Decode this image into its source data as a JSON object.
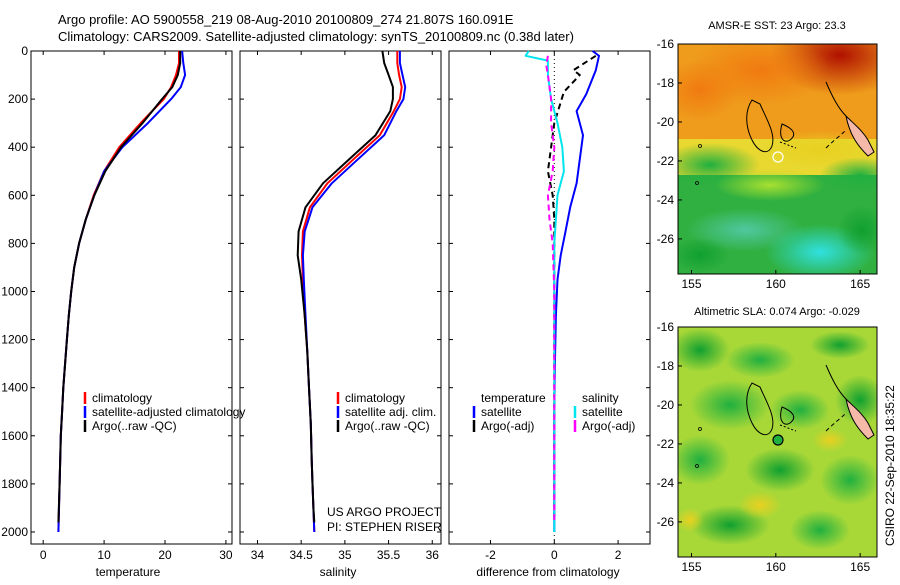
{
  "header": {
    "line1": "Argo profile: AO 5900558_219 08-Aug-2010 20100809_274 21.807S 160.091E",
    "line2": "Climatology: CARS2009. Satellite-adjusted climatology: synTS_20100809.nc (0.38d later)"
  },
  "credit": {
    "project": "US ARGO PROJECT",
    "pi": "PI: STEPHEN RISER",
    "stamp": "CSIRO 22-Sep-2010 18:35:22"
  },
  "colors": {
    "climatology": "#ff0000",
    "satellite": "#0000ff",
    "argo": "#000000",
    "satellite_salinity": "#00e5ee",
    "argo_salinity_adj": "#ff00ff",
    "land": "#f4b9a8"
  },
  "chart_data": [
    {
      "type": "line",
      "xlabel": "temperature",
      "ylabel": "",
      "xlim": [
        -2,
        31
      ],
      "ylim": [
        2050,
        0
      ],
      "x_ticks": [
        "0",
        "10",
        "20",
        "30"
      ],
      "y_ticks": [
        "0",
        "200",
        "400",
        "600",
        "800",
        "1000",
        "1200",
        "1400",
        "1600",
        "1800",
        "2000"
      ],
      "legend": [
        "climatology",
        "satellite-adjusted climatology",
        "Argo(..raw -QC)"
      ],
      "series": [
        {
          "name": "climatology",
          "color": "#ff0000",
          "x": [
            22.3,
            22.3,
            21.8,
            21.0,
            19.8,
            16.0,
            12.5,
            10.0,
            8.3,
            7.0,
            5.9,
            5.1,
            4.6,
            4.2,
            3.9,
            3.6,
            3.3,
            3.1,
            2.9,
            2.7,
            2.5
          ],
          "y": [
            0,
            50,
            100,
            150,
            200,
            300,
            400,
            500,
            600,
            700,
            800,
            900,
            1000,
            1100,
            1200,
            1300,
            1400,
            1500,
            1600,
            1800,
            2000
          ]
        },
        {
          "name": "satellite-adjusted climatology",
          "color": "#0000ff",
          "x": [
            22.8,
            23.0,
            23.3,
            22.6,
            21.0,
            17.2,
            13.0,
            10.0,
            8.4,
            7.0,
            5.9,
            5.1,
            4.6,
            4.2,
            3.9,
            3.6,
            3.3,
            3.1,
            2.9,
            2.7,
            2.5
          ],
          "y": [
            0,
            50,
            100,
            150,
            200,
            300,
            400,
            500,
            600,
            700,
            800,
            900,
            1000,
            1100,
            1200,
            1300,
            1400,
            1500,
            1600,
            1800,
            2000
          ]
        },
        {
          "name": "Argo(..raw -QC)",
          "color": "#000000",
          "x": [
            22.5,
            22.5,
            22.1,
            21.2,
            19.5,
            16.3,
            12.8,
            10.2,
            8.4,
            7.0,
            5.9,
            5.1,
            4.6,
            4.2,
            3.9,
            3.6,
            3.3,
            3.1,
            2.9,
            2.7,
            2.5
          ],
          "y": [
            0,
            50,
            100,
            150,
            200,
            300,
            400,
            500,
            600,
            700,
            800,
            900,
            1000,
            1100,
            1200,
            1300,
            1400,
            1500,
            1600,
            1800,
            1960
          ]
        }
      ]
    },
    {
      "type": "line",
      "xlabel": "salinity",
      "ylabel": "",
      "xlim": [
        33.8,
        36.1
      ],
      "ylim": [
        2050,
        0
      ],
      "x_ticks": [
        "34",
        "34.5",
        "35",
        "35.5",
        "36"
      ],
      "legend": [
        "climatology",
        "satellite adj. clim.",
        "Argo(..raw -QC)"
      ],
      "series": [
        {
          "name": "climatology",
          "color": "#ff0000",
          "x": [
            35.6,
            35.6,
            35.62,
            35.65,
            35.63,
            35.56,
            35.4,
            35.1,
            34.8,
            34.6,
            34.52,
            34.51,
            34.52,
            34.54,
            34.57,
            34.59,
            34.61,
            34.62,
            34.63,
            34.64,
            34.65
          ],
          "y": [
            0,
            50,
            100,
            150,
            200,
            250,
            350,
            450,
            550,
            650,
            750,
            850,
            950,
            1100,
            1250,
            1400,
            1550,
            1700,
            1800,
            1900,
            2000
          ]
        },
        {
          "name": "satellite adj. clim.",
          "color": "#0000ff",
          "x": [
            35.63,
            35.63,
            35.66,
            35.69,
            35.67,
            35.59,
            35.45,
            35.15,
            34.85,
            34.63,
            34.54,
            34.52,
            34.53,
            34.55,
            34.57,
            34.59,
            34.61,
            34.62,
            34.63,
            34.64,
            34.65
          ],
          "y": [
            0,
            50,
            100,
            150,
            200,
            250,
            350,
            450,
            550,
            650,
            750,
            850,
            950,
            1100,
            1250,
            1400,
            1550,
            1700,
            1800,
            1900,
            2000
          ]
        },
        {
          "name": "Argo(..raw -QC)",
          "color": "#000000",
          "x": [
            35.43,
            35.45,
            35.5,
            35.55,
            35.55,
            35.52,
            35.35,
            35.05,
            34.75,
            34.55,
            34.47,
            34.46,
            34.5,
            34.54,
            34.57,
            34.59,
            34.61,
            34.62,
            34.63,
            34.64,
            34.65
          ],
          "y": [
            0,
            50,
            100,
            150,
            200,
            250,
            350,
            450,
            550,
            650,
            750,
            850,
            950,
            1100,
            1250,
            1400,
            1550,
            1700,
            1800,
            1900,
            1960
          ]
        }
      ]
    },
    {
      "type": "line",
      "xlabel": "difference from climatology",
      "ylabel": "",
      "xlim": [
        -3.3,
        3.0
      ],
      "ylim": [
        2050,
        0
      ],
      "x_ticks": [
        "-2",
        "0",
        "2"
      ],
      "legend_headers": [
        "temperature",
        "salinity"
      ],
      "legend": [
        "satellite",
        "Argo(-adj)",
        "satellite",
        "Argo(-adj)"
      ],
      "series": [
        {
          "name": "satellite",
          "color": "#0000ff",
          "dash": false,
          "x": [
            1.2,
            1.4,
            1.3,
            1.0,
            0.7,
            0.9,
            0.8,
            0.7,
            0.5,
            0.35,
            0.2,
            0.1,
            0.05,
            0.02,
            0.0,
            0.0,
            0.0,
            0.0
          ],
          "y": [
            0,
            20,
            80,
            180,
            250,
            350,
            450,
            550,
            650,
            750,
            850,
            950,
            1100,
            1300,
            1500,
            1700,
            1900,
            2000
          ]
        },
        {
          "name": "Argo(-adj)",
          "color": "#000000",
          "dash": true,
          "x": [
            1.3,
            0.6,
            0.8,
            0.3,
            0.0,
            -0.1,
            -0.2,
            -0.05,
            0.0,
            0.0,
            0.0,
            0.0,
            0.0
          ],
          "y": [
            20,
            80,
            100,
            170,
            300,
            400,
            500,
            600,
            700,
            800,
            1000,
            1500,
            1950
          ]
        },
        {
          "name": "satellite",
          "color": "#00e5ee",
          "dash": false,
          "x": [
            -0.8,
            -0.9,
            -0.2,
            -0.2,
            -0.1,
            0.1,
            0.25,
            0.3,
            0.1,
            0.05,
            0.0,
            0.0,
            0.0,
            0.0
          ],
          "y": [
            0,
            20,
            40,
            100,
            200,
            300,
            400,
            500,
            600,
            700,
            800,
            1000,
            1500,
            2000
          ]
        },
        {
          "name": "Argo(-adj)",
          "color": "#ff00ff",
          "dash": true,
          "x": [
            -0.2,
            -0.25,
            -0.2,
            -0.1,
            -0.1,
            0.0,
            -0.05,
            -0.2,
            -0.15,
            -0.05,
            0.0,
            0.0
          ],
          "y": [
            20,
            60,
            100,
            200,
            300,
            400,
            500,
            600,
            700,
            800,
            1000,
            1950
          ]
        }
      ]
    }
  ],
  "maps": [
    {
      "title": "AMSR-E SST: 23 Argo: 23.3",
      "x_ticks": [
        "155",
        "160",
        "165"
      ],
      "y_ticks": [
        "-16",
        "-18",
        "-20",
        "-22",
        "-24",
        "-26"
      ],
      "xlim": [
        154.2,
        166
      ],
      "ylim": [
        -27.8,
        -16
      ]
    },
    {
      "title": "Altimetric SLA: 0.074 Argo: -0.029",
      "x_ticks": [
        "155",
        "160",
        "165"
      ],
      "y_ticks": [
        "-16",
        "-18",
        "-20",
        "-22",
        "-24",
        "-26"
      ],
      "xlim": [
        154.2,
        166
      ],
      "ylim": [
        -27.8,
        -16
      ]
    }
  ]
}
